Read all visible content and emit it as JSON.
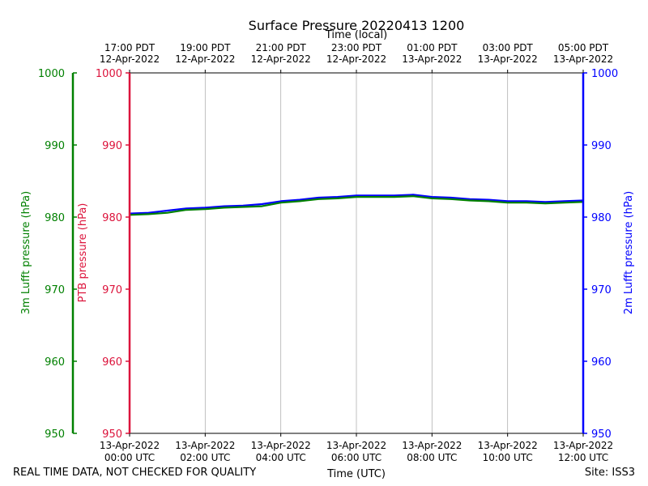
{
  "chart_data": {
    "type": "line",
    "title": "Surface Pressure 20220413 1200",
    "xlabel_bottom": "Time (UTC)",
    "xlabel_top": "Time (local)",
    "ylabels": {
      "lufft3m": "3m Lufft pressure (hPa)",
      "ptb": "PTB pressure (hPa)",
      "lufft2m": "2m Lufft pressure (hPa)"
    },
    "ylim": [
      950,
      1000
    ],
    "yticks": [
      950,
      960,
      970,
      980,
      990,
      1000
    ],
    "xlim_hours": [
      0,
      12
    ],
    "grid": "vertical",
    "bottom_ticks": [
      {
        "hour": 0,
        "line1": "13-Apr-2022",
        "line2": "00:00 UTC"
      },
      {
        "hour": 2,
        "line1": "13-Apr-2022",
        "line2": "02:00 UTC"
      },
      {
        "hour": 4,
        "line1": "13-Apr-2022",
        "line2": "04:00 UTC"
      },
      {
        "hour": 6,
        "line1": "13-Apr-2022",
        "line2": "06:00 UTC"
      },
      {
        "hour": 8,
        "line1": "13-Apr-2022",
        "line2": "08:00 UTC"
      },
      {
        "hour": 10,
        "line1": "13-Apr-2022",
        "line2": "10:00 UTC"
      },
      {
        "hour": 12,
        "line1": "13-Apr-2022",
        "line2": "12:00 UTC"
      }
    ],
    "top_ticks": [
      {
        "hour": 0,
        "line1": "17:00 PDT",
        "line2": "12-Apr-2022"
      },
      {
        "hour": 2,
        "line1": "19:00 PDT",
        "line2": "12-Apr-2022"
      },
      {
        "hour": 4,
        "line1": "21:00 PDT",
        "line2": "12-Apr-2022"
      },
      {
        "hour": 6,
        "line1": "23:00 PDT",
        "line2": "12-Apr-2022"
      },
      {
        "hour": 8,
        "line1": "01:00 PDT",
        "line2": "13-Apr-2022"
      },
      {
        "hour": 10,
        "line1": "03:00 PDT",
        "line2": "13-Apr-2022"
      },
      {
        "hour": 12,
        "line1": "05:00 PDT",
        "line2": "13-Apr-2022"
      }
    ],
    "colors": {
      "lufft3m": "#008000",
      "ptb": "#dc143c",
      "lufft2m": "#0000ff"
    },
    "series": [
      {
        "key": "lufft2m",
        "color": "#0000ff",
        "x": [
          0,
          0.5,
          1,
          1.5,
          2,
          2.5,
          3,
          3.5,
          4,
          4.5,
          5,
          5.5,
          6,
          6.5,
          7,
          7.5,
          8,
          8.5,
          9,
          9.5,
          10,
          10.5,
          11,
          11.5,
          12
        ],
        "y": [
          980.5,
          980.6,
          980.9,
          981.2,
          981.3,
          981.5,
          981.6,
          981.8,
          982.2,
          982.4,
          982.7,
          982.8,
          983.0,
          983.0,
          983.0,
          983.1,
          982.8,
          982.7,
          982.5,
          982.4,
          982.2,
          982.2,
          982.1,
          982.2,
          982.3
        ]
      },
      {
        "key": "lufft3m",
        "color": "#008000",
        "x": [
          0,
          0.5,
          1,
          1.5,
          2,
          2.5,
          3,
          3.5,
          4,
          4.5,
          5,
          5.5,
          6,
          6.5,
          7,
          7.5,
          8,
          8.5,
          9,
          9.5,
          10,
          10.5,
          11,
          11.5,
          12
        ],
        "y": [
          980.3,
          980.4,
          980.6,
          981.0,
          981.1,
          981.3,
          981.4,
          981.5,
          982.0,
          982.2,
          982.5,
          982.6,
          982.8,
          982.8,
          982.8,
          982.9,
          982.6,
          982.5,
          982.3,
          982.2,
          982.0,
          982.0,
          981.9,
          982.0,
          982.1
        ]
      }
    ]
  },
  "notes": {
    "left": "REAL TIME DATA, NOT CHECKED FOR QUALITY",
    "right": "Site: ISS3"
  }
}
